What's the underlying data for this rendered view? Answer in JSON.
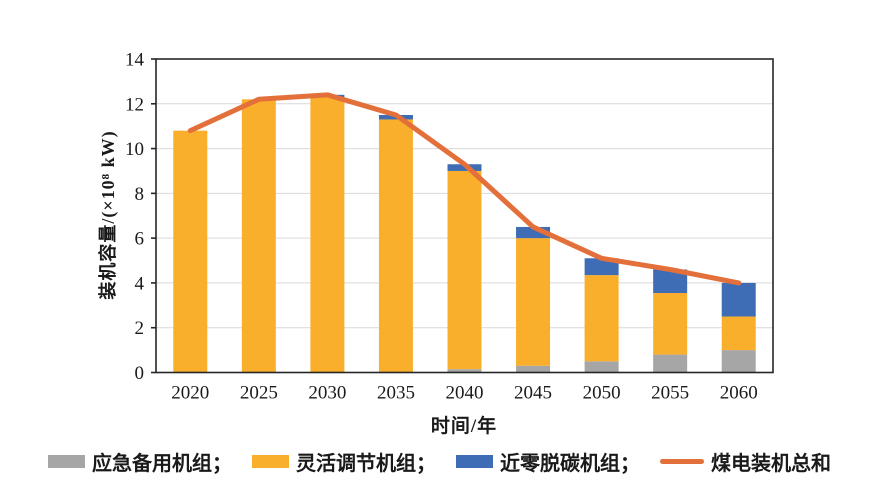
{
  "chart_data": {
    "type": "bar",
    "subtype": "stacked-bars-with-total-line",
    "categories": [
      "2020",
      "2025",
      "2030",
      "2035",
      "2040",
      "2045",
      "2050",
      "2055",
      "2060"
    ],
    "series": [
      {
        "name": "应急备用机组",
        "color": "#A6A6A6",
        "values": [
          0,
          0,
          0,
          0,
          0.15,
          0.3,
          0.5,
          0.8,
          1.0
        ]
      },
      {
        "name": "灵活调节机组",
        "color": "#F9AF2B",
        "values": [
          10.8,
          12.2,
          12.3,
          11.3,
          8.85,
          5.7,
          3.85,
          2.75,
          1.5
        ]
      },
      {
        "name": "近零脱碳机组",
        "color": "#3E6DB5",
        "values": [
          0,
          0,
          0.1,
          0.2,
          0.3,
          0.5,
          0.75,
          1.05,
          1.5
        ]
      }
    ],
    "line": {
      "name": "煤电装机总和",
      "color": "#E3703B",
      "values": [
        10.8,
        12.2,
        12.4,
        11.5,
        9.3,
        6.5,
        5.1,
        4.6,
        4.0
      ]
    },
    "title": "",
    "xlabel": "时间/年",
    "ylabel": "装机容量/(×10⁸ kW)",
    "ylim": [
      0,
      14
    ],
    "ytick_step": 2,
    "grid": true,
    "gridline_color": "#D9D9D9",
    "axis_color": "#262626",
    "legend_position": "bottom",
    "legend": [
      {
        "label": "应急备用机组；",
        "color": "#A6A6A6",
        "kind": "square"
      },
      {
        "label": "灵活调节机组；",
        "color": "#F9AF2B",
        "kind": "square"
      },
      {
        "label": "近零脱碳机组；",
        "color": "#3E6DB5",
        "kind": "square"
      },
      {
        "label": "煤电装机总和",
        "color": "#E3703B",
        "kind": "line"
      }
    ]
  }
}
